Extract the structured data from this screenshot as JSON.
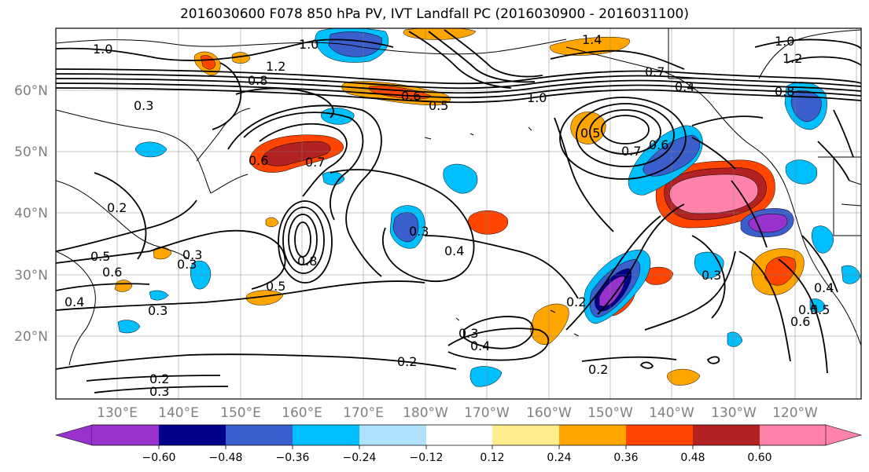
{
  "title": "2016030600 F078 850 hPa PV, IVT Landfall PC (2016030900 - 2016031100)",
  "lat_labels": [
    "60°N",
    "50°N",
    "40°N",
    "30°N",
    "20°N"
  ],
  "lon_labels": [
    "130°E",
    "140°E",
    "150°E",
    "160°E",
    "170°E",
    "180°W",
    "170°W",
    "160°W",
    "150°W",
    "140°W",
    "130°W",
    "120°W"
  ],
  "colorbar": {
    "colors": [
      "#9932cc",
      "#00008b",
      "#3a5fcd",
      "#00bfff",
      "#b0e2ff",
      "#ffffff",
      "#ffec8b",
      "#ffa500",
      "#ff4500",
      "#b22222",
      "#ff82ab"
    ],
    "tick_labels": [
      "−0.60",
      "−0.48",
      "−0.36",
      "−0.24",
      "−0.12",
      "0.12",
      "0.24",
      "0.36",
      "0.48",
      "0.60"
    ]
  },
  "contour_labels": [
    "1.0",
    "1.0",
    "1.4",
    "1.0",
    "1.2",
    "0.8",
    "0.6",
    "0.5",
    "0.7",
    "0.4",
    "1.0",
    "0.8",
    "0.5",
    "0.7",
    "0.6",
    "0.3",
    "0.6",
    "0.7",
    "0.2",
    "0.3",
    "0.4",
    "0.5",
    "0.6",
    "0.8",
    "0.5",
    "0.3",
    "0.4",
    "0.3",
    "0.2",
    "0.3",
    "0.4",
    "0.2",
    "0.2",
    "0.3",
    "0.2",
    "0.3",
    "0.5",
    "0.6",
    "1.2",
    "0.4",
    "0.5",
    "0.3"
  ]
}
